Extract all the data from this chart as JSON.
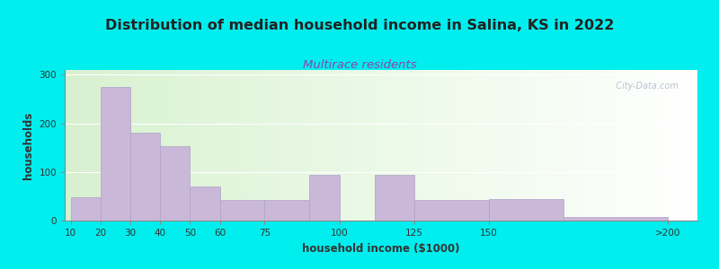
{
  "title": "Distribution of median household income in Salina, KS in 2022",
  "subtitle": "Multirace residents",
  "xlabel": "household income ($1000)",
  "ylabel": "households",
  "background_outer": "#00EEEE",
  "bar_color": "#c9b8d8",
  "bar_edge_color": "#b0a0c8",
  "title_fontsize": 11.5,
  "subtitle_fontsize": 9.5,
  "title_color": "#222222",
  "subtitle_color": "#8844aa",
  "xlabel_fontsize": 8.5,
  "ylabel_fontsize": 8.5,
  "tick_labels": [
    "10",
    "20",
    "30",
    "40",
    "50",
    "60",
    "75",
    "100",
    "125",
    "150",
    ">200"
  ],
  "bar_lefts": [
    10,
    20,
    30,
    40,
    50,
    60,
    75,
    90,
    112,
    125,
    150,
    175
  ],
  "bar_widths": [
    10,
    10,
    10,
    10,
    10,
    15,
    15,
    10,
    13,
    25,
    25,
    35
  ],
  "bar_heights": [
    48,
    275,
    180,
    153,
    70,
    42,
    42,
    95,
    95,
    42,
    45,
    7
  ],
  "tick_positions": [
    10,
    20,
    30,
    40,
    50,
    60,
    75,
    100,
    125,
    150,
    210
  ],
  "xlim": [
    8,
    220
  ],
  "ylim": [
    0,
    310
  ],
  "yticks": [
    0,
    100,
    200,
    300
  ],
  "watermark": "  City-Data.com"
}
